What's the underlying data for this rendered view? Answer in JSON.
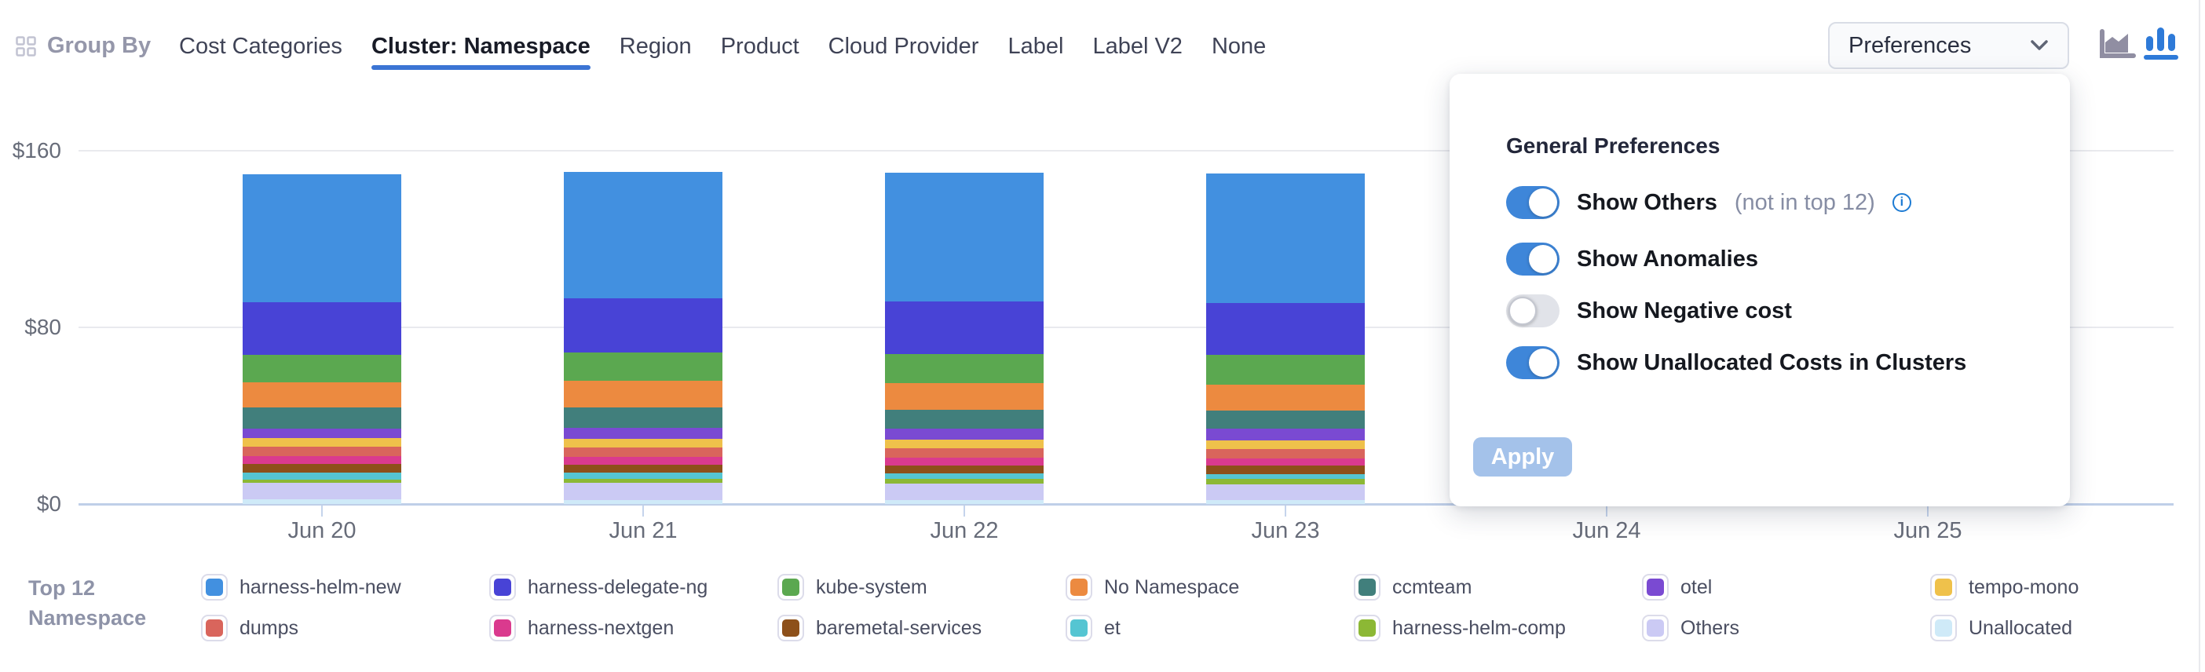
{
  "header": {
    "group_by_label": "Group By",
    "tabs": [
      {
        "label": "Cost Categories",
        "active": false
      },
      {
        "label": "Cluster: Namespace",
        "active": true
      },
      {
        "label": "Region",
        "active": false
      },
      {
        "label": "Product",
        "active": false
      },
      {
        "label": "Cloud Provider",
        "active": false
      },
      {
        "label": "Label",
        "active": false
      },
      {
        "label": "Label V2",
        "active": false
      },
      {
        "label": "None",
        "active": false
      }
    ],
    "preferences_button_label": "Preferences",
    "chart_type_toggle": {
      "area_chart_selected": false,
      "bar_chart_selected": true
    }
  },
  "preferences_panel": {
    "title": "General Preferences",
    "toggles": [
      {
        "label": "Show Others",
        "suffix": "(not in top 12)",
        "has_info_icon": true,
        "state": "on"
      },
      {
        "label": "Show Anomalies",
        "suffix": "",
        "has_info_icon": false,
        "state": "on"
      },
      {
        "label": "Show Negative cost",
        "suffix": "",
        "has_info_icon": false,
        "state": "off"
      },
      {
        "label": "Show Unallocated Costs in Clusters",
        "suffix": "",
        "has_info_icon": false,
        "state": "on"
      }
    ],
    "apply_button": {
      "label": "Apply",
      "enabled": false
    }
  },
  "chart_data": {
    "type": "bar",
    "stacked": true,
    "x_labels": [
      "Jun 20",
      "Jun 21",
      "Jun 22",
      "Jun 23",
      "Jun 24",
      "Jun 25"
    ],
    "y_axis": {
      "tick_labels": [
        "$0",
        "$80",
        "$160"
      ],
      "tick_values": [
        0,
        80,
        160
      ],
      "ylim": [
        0,
        160
      ],
      "unit": "$ per day"
    },
    "grid": "horizontal",
    "legend_position": "bottom",
    "series": [
      {
        "name": "harness-helm-new",
        "color": "#4290e0",
        "values": [
          58.1,
          57.2,
          58.3,
          58.6,
          0,
          0
        ]
      },
      {
        "name": "harness-delegate-ng",
        "color": "#4843d6",
        "values": [
          23.7,
          24.6,
          23.9,
          23.4,
          0,
          0
        ]
      },
      {
        "name": "kube-system",
        "color": "#5ba850",
        "values": [
          12.4,
          12.9,
          13.2,
          13.5,
          0,
          0
        ]
      },
      {
        "name": "No Namespace",
        "color": "#ec8a40",
        "values": [
          11.3,
          12.1,
          11.8,
          12.0,
          0,
          0
        ]
      },
      {
        "name": "ccmteam",
        "color": "#417f7c",
        "values": [
          9.6,
          9.0,
          8.7,
          8.2,
          0,
          0
        ]
      },
      {
        "name": "otel",
        "color": "#7a4ad2",
        "values": [
          4.6,
          5.0,
          5.1,
          5.3,
          0,
          0
        ]
      },
      {
        "name": "tempo-mono",
        "color": "#efc14b",
        "values": [
          3.9,
          4.0,
          3.9,
          3.9,
          0,
          0
        ]
      },
      {
        "name": "dumps",
        "color": "#d9655c",
        "values": [
          4.2,
          4.3,
          4.2,
          4.2,
          0,
          0
        ]
      },
      {
        "name": "harness-nextgen",
        "color": "#da3a8e",
        "values": [
          3.5,
          3.4,
          3.3,
          3.2,
          0,
          0
        ]
      },
      {
        "name": "baremetal-services",
        "color": "#8d501a",
        "values": [
          3.9,
          3.8,
          3.8,
          3.9,
          0,
          0
        ]
      },
      {
        "name": "et",
        "color": "#55c5d2",
        "values": [
          3.2,
          2.8,
          2.5,
          2.2,
          0,
          0
        ]
      },
      {
        "name": "harness-helm-comp",
        "color": "#8cb835",
        "values": [
          1.4,
          1.8,
          2.1,
          2.4,
          0,
          0
        ]
      },
      {
        "name": "Others",
        "color": "#cbcaf4",
        "values": [
          7.5,
          7.6,
          7.4,
          7.2,
          0,
          0
        ]
      },
      {
        "name": "Unallocated",
        "color": "#cfeaf8",
        "values": [
          2.1,
          1.9,
          1.8,
          1.7,
          0,
          0
        ]
      }
    ]
  },
  "legend": {
    "title_lines": [
      "Top 12",
      "Namespace"
    ]
  },
  "colors": {
    "accent_blue": "#3e86d9",
    "tab_underline": "#3b74d4",
    "axis_line": "#bfcfe8",
    "gridline": "#e9eaee",
    "apply_disabled_bg": "#a4c2ea",
    "icon_active_blue": "#2e7ad8",
    "icon_inactive_gray": "#908ea2"
  }
}
